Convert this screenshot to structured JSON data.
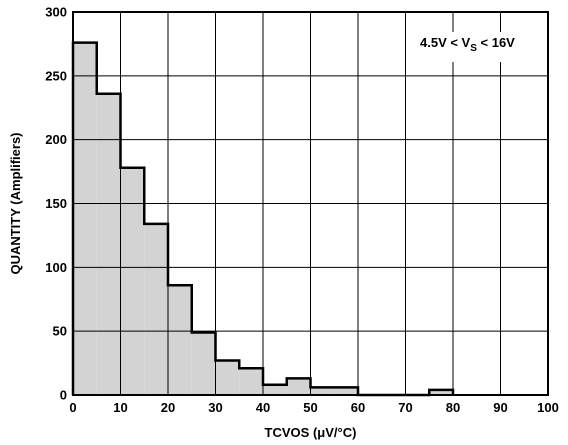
{
  "chart_data": {
    "type": "bar",
    "title": "",
    "xlabel": "TCVOS (μV/°C)",
    "ylabel": "QUANTITY (Amplifiers)",
    "xlim": [
      0,
      100
    ],
    "ylim": [
      0,
      300
    ],
    "x_ticks": [
      0,
      10,
      20,
      30,
      40,
      50,
      60,
      70,
      80,
      90,
      100
    ],
    "y_ticks": [
      0,
      50,
      100,
      150,
      200,
      250,
      300
    ],
    "grid": true,
    "legend": "none",
    "bar_color": "#d3d3d3",
    "edge_color": "#000000",
    "annotation": {
      "prefix": "4.5V < V",
      "subscript": "S",
      "suffix": " < 16V"
    },
    "bins": [
      {
        "x0": 0,
        "x1": 5,
        "value": 276
      },
      {
        "x0": 5,
        "x1": 10,
        "value": 236
      },
      {
        "x0": 10,
        "x1": 15,
        "value": 178
      },
      {
        "x0": 15,
        "x1": 20,
        "value": 134
      },
      {
        "x0": 20,
        "x1": 25,
        "value": 86
      },
      {
        "x0": 25,
        "x1": 30,
        "value": 49
      },
      {
        "x0": 30,
        "x1": 35,
        "value": 27
      },
      {
        "x0": 35,
        "x1": 40,
        "value": 21
      },
      {
        "x0": 40,
        "x1": 45,
        "value": 8
      },
      {
        "x0": 45,
        "x1": 50,
        "value": 13
      },
      {
        "x0": 50,
        "x1": 55,
        "value": 6
      },
      {
        "x0": 55,
        "x1": 60,
        "value": 6
      },
      {
        "x0": 60,
        "x1": 65,
        "value": 0
      },
      {
        "x0": 65,
        "x1": 70,
        "value": 0
      },
      {
        "x0": 70,
        "x1": 75,
        "value": 0
      },
      {
        "x0": 75,
        "x1": 80,
        "value": 4
      }
    ]
  }
}
